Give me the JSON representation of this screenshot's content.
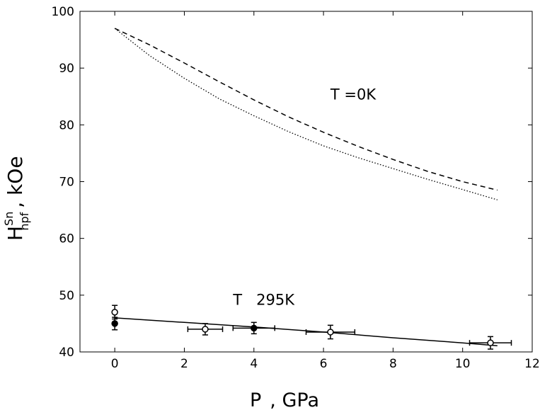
{
  "chart_data": {
    "type": "line",
    "xlabel": {
      "main": "P",
      "unit": ", GPa"
    },
    "ylabel": {
      "main": "H",
      "sup": "Sn",
      "sub": "hpf",
      "unit": ", kOe"
    },
    "xlim": [
      -1,
      12
    ],
    "ylim": [
      40,
      100
    ],
    "xticks": [
      0,
      2,
      4,
      6,
      8,
      10,
      12
    ],
    "yticks": [
      40,
      50,
      60,
      70,
      80,
      90,
      100
    ],
    "grid": false,
    "annotations": [
      {
        "text": "T =0K",
        "x": 6.2,
        "y": 84.5
      },
      {
        "text": "T   295K",
        "x": 3.4,
        "y": 48.3
      }
    ],
    "series": [
      {
        "style": "dashed",
        "x": [
          0,
          1,
          2,
          3,
          4,
          5,
          6,
          7,
          8,
          9,
          10,
          11
        ],
        "values": [
          97.0,
          94.1,
          90.9,
          87.6,
          84.4,
          81.4,
          78.7,
          76.2,
          73.9,
          71.8,
          70.0,
          68.5
        ]
      },
      {
        "style": "dotted",
        "x": [
          0,
          1,
          2,
          3,
          4,
          5,
          6,
          7,
          8,
          9,
          10,
          11
        ],
        "values": [
          97.0,
          92.2,
          88.2,
          84.6,
          81.6,
          78.8,
          76.3,
          74.2,
          72.3,
          70.4,
          68.6,
          66.8
        ]
      },
      {
        "style": "solid",
        "x": [
          0,
          2,
          4,
          6,
          8,
          10,
          11
        ],
        "values": [
          46.0,
          45.2,
          44.4,
          43.5,
          42.5,
          41.6,
          41.1
        ]
      }
    ],
    "points_open": [
      {
        "x": 0,
        "y": 47.0,
        "yerr": 1.2
      },
      {
        "x": 2.6,
        "y": 44.0,
        "yerr": 1.0,
        "xerr": 0.5
      },
      {
        "x": 6.2,
        "y": 43.5,
        "yerr": 1.2,
        "xerr": 0.7
      },
      {
        "x": 10.8,
        "y": 41.6,
        "yerr": 1.1,
        "xerr": 0.6
      }
    ],
    "points_filled": [
      {
        "x": 0,
        "y": 45.0,
        "yerr": 1.1
      },
      {
        "x": 4.0,
        "y": 44.2,
        "yerr": 1.0,
        "xerr": 0.6
      }
    ]
  }
}
